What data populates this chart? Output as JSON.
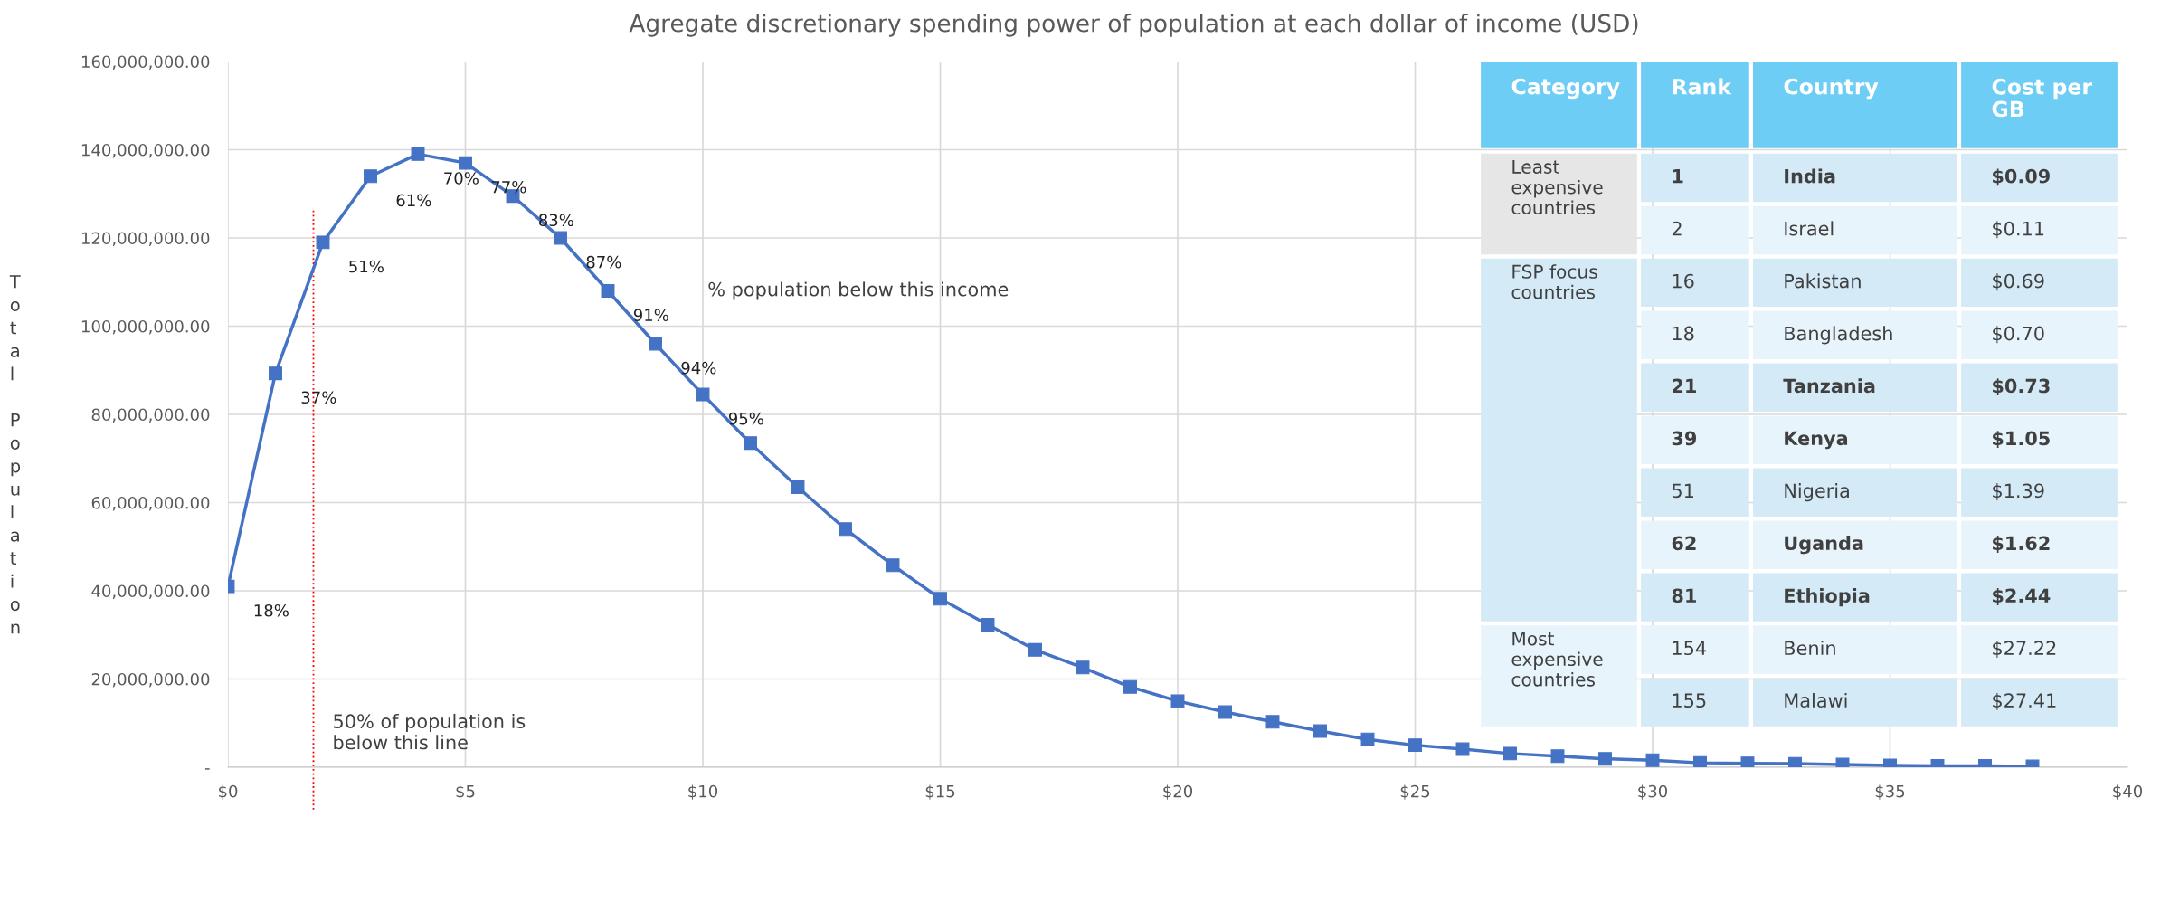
{
  "chart_data": [
    {
      "type": "line",
      "title": "Agregate discretionary spending power of population at each dollar of income (USD)",
      "ylabel": "Total Population",
      "x": [
        0,
        1,
        2,
        3,
        4,
        5,
        6,
        7,
        8,
        9,
        10,
        11,
        12,
        13,
        14,
        15,
        16,
        17,
        18,
        19,
        20,
        21,
        22,
        23,
        24,
        25,
        26,
        27,
        28,
        29,
        30,
        31,
        32,
        33,
        34,
        35,
        36,
        37,
        38
      ],
      "series": [
        {
          "color": "#4472c4",
          "values": [
            41000000,
            89300000,
            119000000,
            134000000,
            139000000,
            137000000,
            129500000,
            120000000,
            108000000,
            96000000,
            84500000,
            73500000,
            63500000,
            54000000,
            45800000,
            38200000,
            32300000,
            26600000,
            22600000,
            18200000,
            15000000,
            12500000,
            10300000,
            8200000,
            6300000,
            5000000,
            4100000,
            3100000,
            2500000,
            1900000,
            1600000,
            1000000,
            900000,
            800000,
            600000,
            400000,
            300000,
            300000,
            200000
          ]
        }
      ],
      "marker": "square",
      "line_style": "solid",
      "grid": true,
      "xlim": [
        0,
        40
      ],
      "xticks": [
        {
          "value": 0,
          "label": "$0"
        },
        {
          "value": 5,
          "label": "$5"
        },
        {
          "value": 10,
          "label": "$10"
        },
        {
          "value": 15,
          "label": "$15"
        },
        {
          "value": 20,
          "label": "$20"
        },
        {
          "value": 25,
          "label": "$25"
        },
        {
          "value": 30,
          "label": "$30"
        },
        {
          "value": 35,
          "label": "$35"
        },
        {
          "value": 40,
          "label": "$40"
        }
      ],
      "ylim": [
        0,
        160000000
      ],
      "yticks": [
        {
          "value": 0,
          "label": "-"
        },
        {
          "value": 20000000,
          "label": "20,000,000.00"
        },
        {
          "value": 40000000,
          "label": "40,000,000.00"
        },
        {
          "value": 60000000,
          "label": "60,000,000.00"
        },
        {
          "value": 80000000,
          "label": "80,000,000.00"
        },
        {
          "value": 100000000,
          "label": "100,000,000.00"
        },
        {
          "value": 120000000,
          "label": "120,000,000.00"
        },
        {
          "value": 140000000,
          "label": "140,000,000.00"
        },
        {
          "value": 160000000,
          "label": "160,000,000.00"
        }
      ],
      "ref_lines": [
        {
          "axis": "x",
          "value": 1.8,
          "label": "50% of population is\nbelow this line",
          "color": "#ff0000",
          "line_style": "dotted"
        }
      ],
      "annotations": [
        "% population below this income",
        {
          "text": "18%",
          "x": 0,
          "y": 41000000
        },
        {
          "text": "37%",
          "x": 1,
          "y": 89300000
        },
        {
          "text": "51%",
          "x": 2,
          "y": 119000000
        },
        {
          "text": "61%",
          "x": 3,
          "y": 134000000
        },
        {
          "text": "70%",
          "x": 4,
          "y": 139000000
        },
        {
          "text": "77%",
          "x": 5,
          "y": 137000000
        },
        {
          "text": "83%",
          "x": 6,
          "y": 129500000
        },
        {
          "text": "87%",
          "x": 7,
          "y": 120000000
        },
        {
          "text": "91%",
          "x": 8,
          "y": 108000000
        },
        {
          "text": "94%",
          "x": 9,
          "y": 96000000
        },
        {
          "text": "95%",
          "x": 10,
          "y": 84500000
        }
      ]
    },
    {
      "type": "other",
      "categories": [
        "Category",
        "Rank",
        "Country",
        "Cost per GB"
      ],
      "annotations": [
        "Least expensive countries",
        "FSP focus countries",
        "Most expensive countries",
        "1",
        "India",
        "$0.09",
        "2",
        "Israel",
        "$0.11",
        "16",
        "Pakistan",
        "$0.69",
        "18",
        "Bangladesh",
        "$0.70",
        "21",
        "Tanzania",
        "$0.73",
        "39",
        "Kenya",
        "$1.05",
        "51",
        "Nigeria",
        "$1.39",
        "62",
        "Uganda",
        "$1.62",
        "81",
        "Ethiopia",
        "$2.44",
        "154",
        "Benin",
        "$27.22",
        "155",
        "Malawi",
        "$27.41"
      ]
    }
  ]
}
